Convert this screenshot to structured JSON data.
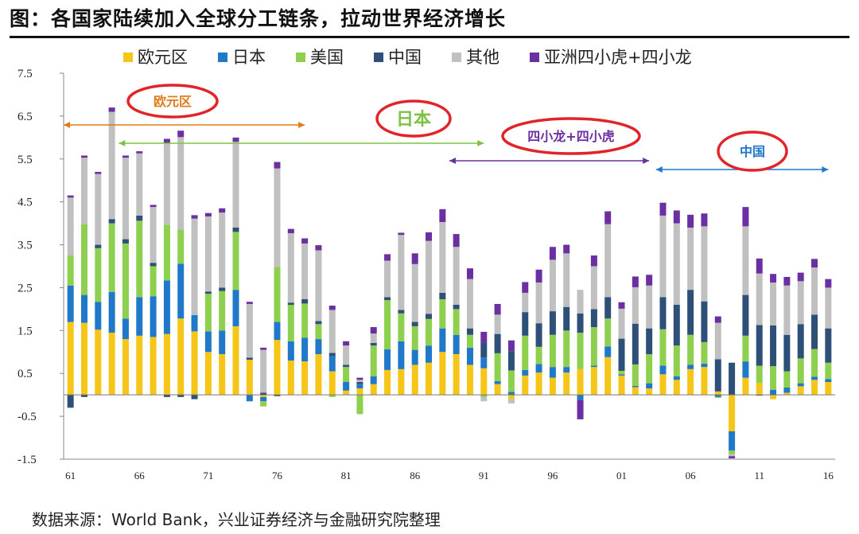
{
  "title": "图：各国家陆续加入全球分工链条，拉动世界经济增长",
  "source": "数据来源：World Bank，兴业证券经济与金融研究院整理",
  "chart_data": {
    "type": "bar",
    "stacked": true,
    "ylim": [
      -1.5,
      7.5
    ],
    "yticks": [
      "7.5",
      "6.5",
      "5.5",
      "4.5",
      "3.5",
      "2.5",
      "1.5",
      "0.5",
      "-0.5",
      "-1.5"
    ],
    "ytick_values": [
      7.5,
      6.5,
      5.5,
      4.5,
      3.5,
      2.5,
      1.5,
      0.5,
      -0.5,
      -1.5
    ],
    "xticks": [
      {
        "year": 1961,
        "label": "61"
      },
      {
        "year": 1966,
        "label": "66"
      },
      {
        "year": 1971,
        "label": "71"
      },
      {
        "year": 1976,
        "label": "76"
      },
      {
        "year": 1981,
        "label": "81"
      },
      {
        "year": 1986,
        "label": "86"
      },
      {
        "year": 1991,
        "label": "91"
      },
      {
        "year": 1996,
        "label": "96"
      },
      {
        "year": 2001,
        "label": "01"
      },
      {
        "year": 2006,
        "label": "06"
      },
      {
        "year": 2011,
        "label": "11"
      },
      {
        "year": 2016,
        "label": "16"
      }
    ],
    "grid": false,
    "legend_position": "top",
    "categories": [
      1961,
      1962,
      1963,
      1964,
      1965,
      1966,
      1967,
      1968,
      1969,
      1970,
      1971,
      1972,
      1973,
      1974,
      1975,
      1976,
      1977,
      1978,
      1979,
      1980,
      1981,
      1982,
      1983,
      1984,
      1985,
      1986,
      1987,
      1988,
      1989,
      1990,
      1991,
      1992,
      1993,
      1994,
      1995,
      1996,
      1997,
      1998,
      1999,
      2000,
      2001,
      2002,
      2003,
      2004,
      2005,
      2006,
      2007,
      2008,
      2009,
      2010,
      2011,
      2012,
      2013,
      2014,
      2015,
      2016
    ],
    "series": [
      {
        "name": "欧元区",
        "color": "#f5c518",
        "values": [
          1.7,
          1.68,
          1.52,
          1.45,
          1.3,
          1.38,
          1.35,
          1.42,
          1.78,
          1.48,
          1.0,
          0.95,
          1.6,
          0.82,
          -0.05,
          1.28,
          0.8,
          0.78,
          0.95,
          0.55,
          0.1,
          0.15,
          0.25,
          0.58,
          0.6,
          0.7,
          0.75,
          1.0,
          0.95,
          0.7,
          0.62,
          0.25,
          -0.1,
          0.45,
          0.52,
          0.4,
          0.52,
          0.6,
          0.65,
          0.88,
          0.45,
          0.18,
          0.15,
          0.48,
          0.35,
          0.6,
          0.65,
          0.08,
          -0.85,
          0.4,
          0.28,
          -0.1,
          0.05,
          0.2,
          0.35,
          0.3
        ]
      },
      {
        "name": "日本",
        "color": "#1f78c8",
        "values": [
          0.85,
          0.65,
          0.65,
          0.95,
          0.48,
          0.9,
          0.95,
          1.25,
          1.28,
          0.38,
          0.48,
          0.55,
          0.85,
          -0.15,
          -0.1,
          0.42,
          0.45,
          0.55,
          0.35,
          0.35,
          0.2,
          0.1,
          0.18,
          0.48,
          0.65,
          0.35,
          0.4,
          0.55,
          0.45,
          0.4,
          0.25,
          0.07,
          0.07,
          0.13,
          0.2,
          0.25,
          0.13,
          -0.12,
          0.03,
          0.25,
          0.03,
          0.03,
          0.12,
          0.2,
          0.08,
          0.1,
          0.08,
          -0.05,
          -0.45,
          0.38,
          -0.02,
          0.12,
          0.12,
          0.07,
          0.07,
          0.07
        ]
      },
      {
        "name": "美国",
        "color": "#8ecf4f",
        "values": [
          0.7,
          1.65,
          1.25,
          1.6,
          1.75,
          1.78,
          0.7,
          1.3,
          0.8,
          0.0,
          0.88,
          0.92,
          1.35,
          0.0,
          -0.12,
          1.28,
          0.85,
          0.8,
          0.35,
          -0.05,
          0.35,
          -0.45,
          0.72,
          1.15,
          0.65,
          0.55,
          0.62,
          0.68,
          0.6,
          0.3,
          -0.05,
          0.65,
          0.5,
          0.8,
          0.4,
          0.75,
          0.85,
          0.85,
          0.9,
          0.65,
          0.08,
          0.5,
          0.68,
          0.85,
          0.72,
          0.7,
          0.5,
          -0.02,
          -0.08,
          0.6,
          0.4,
          0.55,
          0.38,
          0.58,
          0.65,
          0.38
        ]
      },
      {
        "name": "中国",
        "color": "#2e4f78",
        "values": [
          -0.3,
          -0.05,
          0.08,
          0.1,
          0.1,
          0.12,
          0.08,
          -0.05,
          -0.05,
          -0.1,
          0.05,
          0.08,
          0.1,
          0.05,
          0.05,
          -0.03,
          0.05,
          0.1,
          0.07,
          0.08,
          0.05,
          0.05,
          0.06,
          0.07,
          0.08,
          0.1,
          0.12,
          0.15,
          0.1,
          0.15,
          0.35,
          0.45,
          0.45,
          0.55,
          0.55,
          0.55,
          0.55,
          0.45,
          0.42,
          0.5,
          0.75,
          0.95,
          0.6,
          0.75,
          0.95,
          1.05,
          0.95,
          0.75,
          0.75,
          0.95,
          0.95,
          0.95,
          0.85,
          0.8,
          0.8,
          0.8
        ]
      },
      {
        "name": "其他",
        "color": "#c0c0c0",
        "values": [
          1.35,
          1.55,
          1.65,
          2.5,
          1.9,
          1.45,
          1.3,
          1.9,
          2.15,
          2.25,
          1.75,
          1.75,
          2.0,
          1.25,
          1.0,
          2.3,
          1.62,
          1.3,
          1.65,
          1.0,
          0.45,
          0.05,
          0.22,
          0.85,
          1.75,
          1.35,
          1.7,
          1.65,
          1.35,
          1.15,
          -0.1,
          0.45,
          -0.1,
          0.45,
          0.95,
          1.2,
          1.25,
          0.55,
          1.0,
          1.7,
          0.7,
          0.85,
          1.0,
          1.9,
          1.9,
          1.45,
          1.75,
          0.85,
          -0.05,
          1.6,
          1.2,
          1.0,
          1.15,
          1.0,
          1.1,
          0.95
        ]
      },
      {
        "name": "亚洲四小虎+四小龙",
        "color": "#6a2fa0",
        "values": [
          0.05,
          0.05,
          0.05,
          0.1,
          0.05,
          0.05,
          0.05,
          0.1,
          0.15,
          0.08,
          0.08,
          0.1,
          0.1,
          0.05,
          0.05,
          0.15,
          0.1,
          0.12,
          0.12,
          0.1,
          0.1,
          0.05,
          0.15,
          0.15,
          0.05,
          0.25,
          0.2,
          0.3,
          0.3,
          0.25,
          0.25,
          0.25,
          0.25,
          0.25,
          0.3,
          0.3,
          0.2,
          -0.45,
          0.25,
          0.3,
          0.15,
          0.25,
          0.25,
          0.3,
          0.3,
          0.3,
          0.3,
          0.15,
          -0.05,
          0.45,
          0.35,
          0.2,
          0.2,
          0.2,
          0.2,
          0.2
        ]
      }
    ],
    "annotations": [
      {
        "label": "欧元区",
        "from": 1961,
        "to": 1978,
        "color": "#e07b1a"
      },
      {
        "label": "日本",
        "from": 1965,
        "to": 1991,
        "color": "#7dc242"
      },
      {
        "label": "四小龙+四小虎",
        "from": 1989,
        "to": 2003,
        "color": "#6a2fa0"
      },
      {
        "label": "中国",
        "from": 2004,
        "to": 2016,
        "color": "#1f78c8"
      }
    ]
  }
}
